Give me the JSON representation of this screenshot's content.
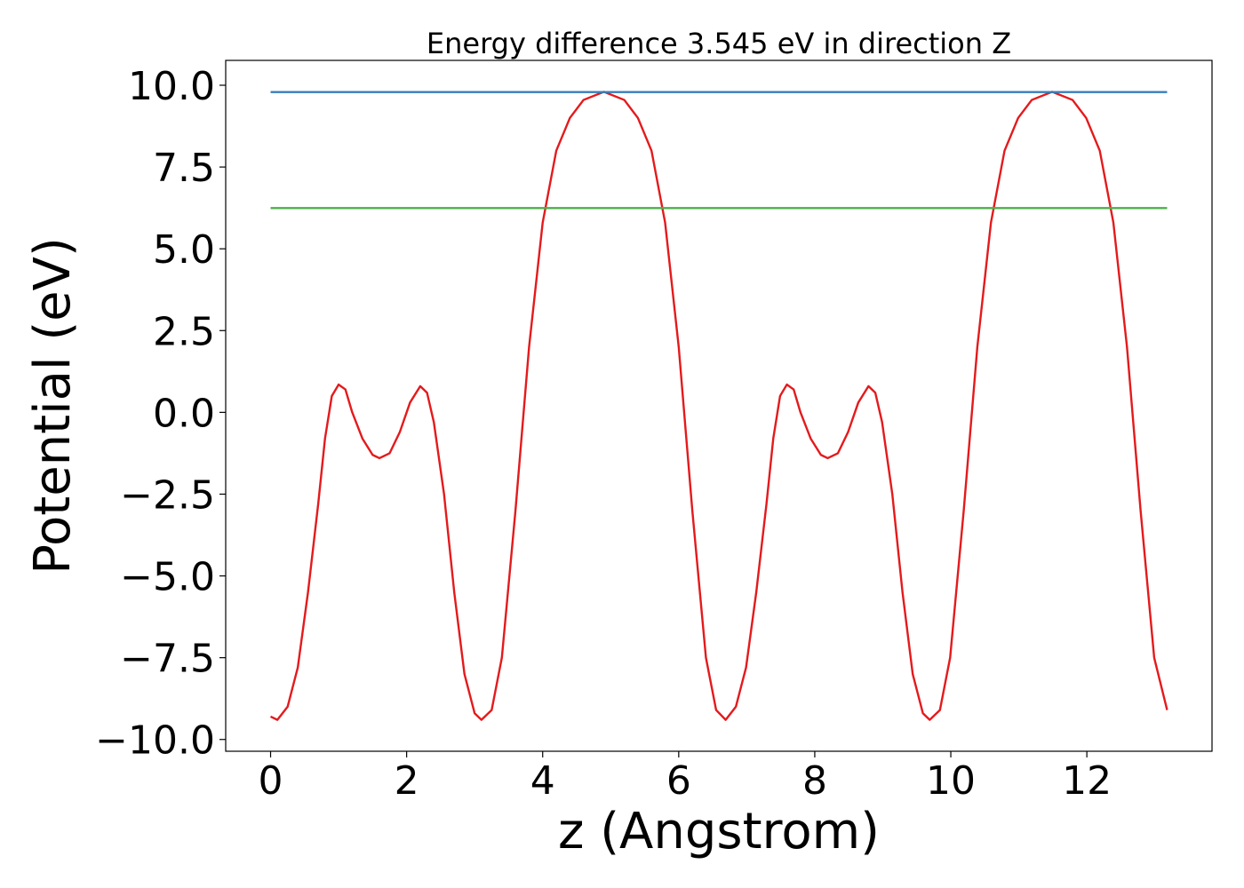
{
  "chart_data": {
    "type": "line",
    "title": "Energy difference 3.545 eV in direction Z",
    "xlabel": "z (Angstrom)",
    "ylabel": "Potential (eV)",
    "xlim": [
      -0.66,
      13.84
    ],
    "ylim": [
      -10.36,
      10.76
    ],
    "xticks": [
      0,
      2,
      4,
      6,
      8,
      10,
      12
    ],
    "yticks": [
      {
        "value": 10,
        "label": "10.0"
      },
      {
        "value": 7.5,
        "label": "7.5"
      },
      {
        "value": 5,
        "label": "5.0"
      },
      {
        "value": 2.5,
        "label": "2.5"
      },
      {
        "value": 0,
        "label": "0.0"
      },
      {
        "value": -2.5,
        "label": "−2.5"
      },
      {
        "value": -5,
        "label": "−5.0"
      },
      {
        "value": -7.5,
        "label": "−7.5"
      },
      {
        "value": -10,
        "label": "−10.0"
      }
    ],
    "grid": false,
    "series": [
      {
        "color": "#e41a1c",
        "x": [
          0,
          0.1,
          0.25,
          0.4,
          0.55,
          0.7,
          0.8,
          0.9,
          1.0,
          1.1,
          1.2,
          1.35,
          1.5,
          1.6,
          1.75,
          1.9,
          2.05,
          2.2,
          2.3,
          2.4,
          2.55,
          2.7,
          2.85,
          3.0,
          3.1,
          3.25,
          3.4,
          3.6,
          3.8,
          4.0,
          4.2,
          4.4,
          4.6,
          4.9,
          5.2,
          5.4,
          5.6,
          5.8,
          6.0,
          6.2,
          6.4,
          6.55,
          6.69,
          6.84,
          6.99,
          7.14,
          7.29,
          7.39,
          7.49,
          7.59,
          7.69,
          7.79,
          7.94,
          8.09,
          8.19,
          8.34,
          8.49,
          8.64,
          8.79,
          8.89,
          8.99,
          9.14,
          9.29,
          9.44,
          9.59,
          9.69,
          9.84,
          9.99,
          10.19,
          10.39,
          10.59,
          10.79,
          10.99,
          11.19,
          11.49,
          11.79,
          11.99,
          12.19,
          12.39,
          12.59,
          12.79,
          12.99,
          13.18
        ],
        "values": [
          -9.3,
          -9.4,
          -9.0,
          -7.8,
          -5.5,
          -2.8,
          -0.8,
          0.5,
          0.85,
          0.7,
          0.0,
          -0.8,
          -1.3,
          -1.4,
          -1.25,
          -0.6,
          0.3,
          0.8,
          0.6,
          -0.3,
          -2.5,
          -5.5,
          -8.0,
          -9.2,
          -9.4,
          -9.1,
          -7.5,
          -3.0,
          2.0,
          5.8,
          8.0,
          9.0,
          9.55,
          9.8,
          9.55,
          9.0,
          8.0,
          5.8,
          2.0,
          -3.0,
          -7.5,
          -9.1,
          -9.4,
          -9.0,
          -7.8,
          -5.5,
          -2.8,
          -0.8,
          0.5,
          0.85,
          0.7,
          0.0,
          -0.8,
          -1.3,
          -1.4,
          -1.25,
          -0.6,
          0.3,
          0.8,
          0.6,
          -0.3,
          -2.5,
          -5.5,
          -8.0,
          -9.2,
          -9.4,
          -9.1,
          -7.5,
          -3.0,
          2.0,
          5.8,
          8.0,
          9.0,
          9.55,
          9.8,
          9.55,
          9.0,
          8.0,
          5.8,
          2.0,
          -3.0,
          -7.5,
          -9.1
        ]
      },
      {
        "color": "#377eb8",
        "x": [
          0,
          13.18
        ],
        "values": [
          9.79,
          9.79
        ]
      },
      {
        "color": "#4daf4a",
        "x": [
          0,
          13.18
        ],
        "values": [
          6.245,
          6.245
        ]
      }
    ]
  }
}
